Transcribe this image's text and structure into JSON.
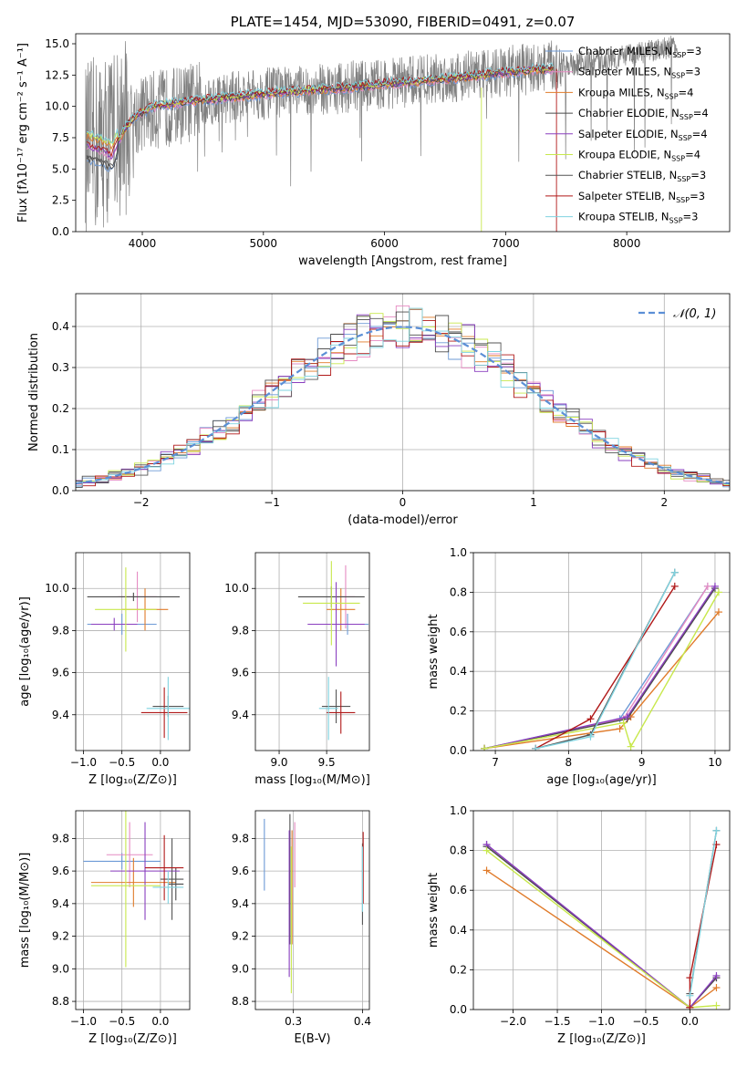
{
  "colors": {
    "Chabrier MILES": "#6d9ad6",
    "Salpeter MILES": "#e68ac2",
    "Kroupa MILES": "#e07b2a",
    "Chabrier ELODIE": "#4a4a4a",
    "Salpeter ELODIE": "#8a3fbf",
    "Kroupa ELODIE": "#c8e84c",
    "Chabrier STELIB": "#555555",
    "Salpeter STELIB": "#b01818",
    "Kroupa STELIB": "#7fd3e0",
    "data": "#808080",
    "gauss": "#5b8fd6"
  },
  "chart_data": [
    {
      "id": "spectrum",
      "type": "line",
      "title": "PLATE=1454, MJD=53090, FIBERID=0491, z=0.07",
      "xlabel": "wavelength [Angstrom, rest frame]",
      "ylabel": "Flux [fλ10⁻¹⁷ erg cm⁻² s⁻¹ A⁻¹]",
      "xlim": [
        3450,
        8850
      ],
      "ylim": [
        0,
        15.8
      ],
      "xticks": [
        4000,
        5000,
        6000,
        7000,
        8000
      ],
      "yticks": [
        0.0,
        2.5,
        5.0,
        7.5,
        10.0,
        12.5,
        15.0
      ],
      "legend_position": "upper-right",
      "legend": [
        "Chabrier MILES, N_SSP=3",
        "Salpeter MILES, N_SSP=3",
        "Kroupa MILES, N_SSP=4",
        "Chabrier ELODIE, N_SSP=4",
        "Salpeter ELODIE, N_SSP=4",
        "Kroupa ELODIE, N_SSP=4",
        "Chabrier STELIB, N_SSP=3",
        "Salpeter STELIB, N_SSP=3",
        "Kroupa STELIB, N_SSP=3"
      ],
      "legend_names": [
        "Chabrier MILES",
        "Salpeter MILES",
        "Kroupa MILES",
        "Chabrier ELODIE",
        "Salpeter ELODIE",
        "Kroupa ELODIE",
        "Chabrier STELIB",
        "Salpeter STELIB",
        "Kroupa STELIB"
      ],
      "legend_prefix": [
        "Chabrier MILES, N",
        "Salpeter MILES, N",
        "Kroupa MILES, N",
        "Chabrier ELODIE, N",
        "Salpeter ELODIE, N",
        "Kroupa ELODIE, N",
        "Chabrier STELIB, N",
        "Salpeter STELIB, N",
        "Kroupa STELIB, N"
      ],
      "legend_sub": "SSP",
      "legend_n": [
        "3",
        "3",
        "4",
        "4",
        "4",
        "4",
        "3",
        "3",
        "3"
      ],
      "model_continuum": {
        "x": [
          3550,
          3650,
          3750,
          3850,
          3950,
          4100,
          4300,
          4500,
          4800,
          5100,
          5400,
          5700,
          6000,
          6300,
          6600,
          6900,
          7200,
          7400
        ],
        "y": [
          6.8,
          6.5,
          6.0,
          8.2,
          9.3,
          10.0,
          10.3,
          10.5,
          10.8,
          11.1,
          11.3,
          11.5,
          11.8,
          12.0,
          12.3,
          12.6,
          12.9,
          13.0
        ]
      },
      "data_continuum": {
        "x": [
          3550,
          3800,
          4000,
          4500,
          5000,
          5500,
          6000,
          6500,
          7000,
          7500,
          8000,
          8400
        ],
        "y": [
          6.5,
          8.0,
          9.5,
          10.5,
          11.0,
          11.4,
          11.8,
          12.3,
          12.8,
          13.3,
          14.0,
          14.8
        ]
      }
    },
    {
      "id": "residuals",
      "type": "line",
      "xlabel": "(data-model)/error",
      "ylabel": "Normed distribution",
      "xlim": [
        -2.5,
        2.5
      ],
      "ylim": [
        0,
        0.48
      ],
      "xticks": [
        -2,
        -1,
        0,
        1,
        2
      ],
      "yticks": [
        0.0,
        0.1,
        0.2,
        0.3,
        0.4
      ],
      "legend_position": "upper-right",
      "legend": [
        "𝒩(0, 1)"
      ],
      "bin_width": 0.1
    },
    {
      "id": "age_vs_Z",
      "type": "scatter",
      "xlabel": "Z [log₁₀(Z/Z⊙)]",
      "ylabel": "age  [log₁₀(age/yr)]",
      "xlim": [
        -1.1,
        0.38
      ],
      "ylim": [
        9.23,
        10.17
      ],
      "xticks": [
        -1.0,
        -0.5,
        0.0
      ],
      "yticks": [
        9.4,
        9.6,
        9.8,
        10.0
      ],
      "errorbars": [
        {
          "model": "Chabrier MILES",
          "x": -0.5,
          "y": 9.83,
          "xerr": 0.45,
          "yerr": 0.05
        },
        {
          "model": "Salpeter MILES",
          "x": -0.3,
          "y": 9.96,
          "xerr": 0.25,
          "yerr": 0.12
        },
        {
          "model": "Kroupa MILES",
          "x": -0.2,
          "y": 9.9,
          "xerr": 0.3,
          "yerr": 0.1
        },
        {
          "model": "Chabrier ELODIE",
          "x": -0.35,
          "y": 9.96,
          "xerr": 0.6,
          "yerr": 0.02
        },
        {
          "model": "Salpeter ELODIE",
          "x": -0.6,
          "y": 9.83,
          "xerr": 0.3,
          "yerr": 0.03
        },
        {
          "model": "Kroupa ELODIE",
          "x": -0.45,
          "y": 9.9,
          "xerr": 0.4,
          "yerr": 0.2
        },
        {
          "model": "Chabrier STELIB",
          "x": 0.1,
          "y": 9.44,
          "xerr": 0.2,
          "yerr": 0.05
        },
        {
          "model": "Salpeter STELIB",
          "x": 0.05,
          "y": 9.41,
          "xerr": 0.3,
          "yerr": 0.12
        },
        {
          "model": "Kroupa STELIB",
          "x": 0.1,
          "y": 9.43,
          "xerr": 0.28,
          "yerr": 0.15
        }
      ]
    },
    {
      "id": "age_vs_mass",
      "type": "scatter",
      "xlabel": "mass [log₁₀(M/M⊙)]",
      "ylabel": "",
      "xlim": [
        8.75,
        9.95
      ],
      "ylim": [
        9.23,
        10.17
      ],
      "xticks": [
        9.0,
        9.5
      ],
      "yticks": [
        9.4,
        9.6,
        9.8,
        10.0
      ],
      "errorbars": [
        {
          "model": "Chabrier MILES",
          "x": 9.72,
          "y": 9.83,
          "xerr": 0.22,
          "yerr": 0.05
        },
        {
          "model": "Salpeter MILES",
          "x": 9.7,
          "y": 9.96,
          "xerr": 0.1,
          "yerr": 0.15
        },
        {
          "model": "Kroupa MILES",
          "x": 9.65,
          "y": 9.9,
          "xerr": 0.15,
          "yerr": 0.1
        },
        {
          "model": "Chabrier ELODIE",
          "x": 9.55,
          "y": 9.96,
          "xerr": 0.35,
          "yerr": 0.05
        },
        {
          "model": "Salpeter ELODIE",
          "x": 9.6,
          "y": 9.83,
          "xerr": 0.3,
          "yerr": 0.2
        },
        {
          "model": "Kroupa ELODIE",
          "x": 9.55,
          "y": 9.93,
          "xerr": 0.3,
          "yerr": 0.2
        },
        {
          "model": "Chabrier STELIB",
          "x": 9.6,
          "y": 9.44,
          "xerr": 0.15,
          "yerr": 0.08
        },
        {
          "model": "Salpeter STELIB",
          "x": 9.65,
          "y": 9.41,
          "xerr": 0.15,
          "yerr": 0.1
        },
        {
          "model": "Kroupa STELIB",
          "x": 9.52,
          "y": 9.43,
          "xerr": 0.1,
          "yerr": 0.15
        }
      ]
    },
    {
      "id": "weight_vs_age",
      "type": "line",
      "xlabel": "age  [log₁₀(age/yr)]",
      "ylabel": "mass weight",
      "xlim": [
        6.7,
        10.2
      ],
      "ylim": [
        0,
        1.0
      ],
      "xticks": [
        7,
        8,
        9,
        10
      ],
      "yticks": [
        0.0,
        0.2,
        0.4,
        0.6,
        0.8,
        1.0
      ],
      "series": [
        {
          "model": "Chabrier MILES",
          "x": [
            6.85,
            8.7,
            9.9
          ],
          "y": [
            0.01,
            0.16,
            0.83
          ]
        },
        {
          "model": "Salpeter MILES",
          "x": [
            6.85,
            8.75,
            9.9
          ],
          "y": [
            0.01,
            0.16,
            0.83
          ]
        },
        {
          "model": "Kroupa MILES",
          "x": [
            6.85,
            8.7,
            8.85,
            10.05
          ],
          "y": [
            0.01,
            0.11,
            0.17,
            0.7
          ]
        },
        {
          "model": "Chabrier ELODIE",
          "x": [
            6.85,
            8.8,
            10.0
          ],
          "y": [
            0.01,
            0.16,
            0.82
          ]
        },
        {
          "model": "Salpeter ELODIE",
          "x": [
            6.85,
            8.8,
            10.0
          ],
          "y": [
            0.01,
            0.17,
            0.83
          ]
        },
        {
          "model": "Kroupa ELODIE",
          "x": [
            6.85,
            8.75,
            8.85,
            10.05
          ],
          "y": [
            0.01,
            0.14,
            0.02,
            0.8
          ]
        },
        {
          "model": "Chabrier STELIB",
          "x": [
            7.55,
            8.3,
            9.45
          ],
          "y": [
            0.01,
            0.08,
            0.9
          ]
        },
        {
          "model": "Salpeter STELIB",
          "x": [
            7.55,
            8.3,
            9.45
          ],
          "y": [
            0.01,
            0.16,
            0.83
          ]
        },
        {
          "model": "Kroupa STELIB",
          "x": [
            7.55,
            8.3,
            9.45
          ],
          "y": [
            0.01,
            0.07,
            0.9
          ]
        }
      ]
    },
    {
      "id": "mass_vs_Z",
      "type": "scatter",
      "xlabel": "Z [log₁₀(Z/Z⊙)]",
      "ylabel": "mass [log₁₀(M/M⊙)]",
      "xlim": [
        -1.1,
        0.38
      ],
      "ylim": [
        8.75,
        9.97
      ],
      "xticks": [
        -1.0,
        -0.5,
        0.0
      ],
      "yticks": [
        8.8,
        9.0,
        9.2,
        9.4,
        9.6,
        9.8
      ],
      "errorbars": [
        {
          "model": "Chabrier MILES",
          "x": -0.5,
          "y": 9.66,
          "xerr": 0.5,
          "yerr": 0.05
        },
        {
          "model": "Salpeter MILES",
          "x": -0.4,
          "y": 9.7,
          "xerr": 0.3,
          "yerr": 0.2
        },
        {
          "model": "Kroupa MILES",
          "x": -0.35,
          "y": 9.53,
          "xerr": 0.55,
          "yerr": 0.15
        },
        {
          "model": "Chabrier ELODIE",
          "x": 0.2,
          "y": 9.52,
          "xerr": 0.1,
          "yerr": 0.1
        },
        {
          "model": "Salpeter ELODIE",
          "x": -0.2,
          "y": 9.6,
          "xerr": 0.45,
          "yerr": 0.3
        },
        {
          "model": "Kroupa ELODIE",
          "x": -0.45,
          "y": 9.51,
          "xerr": 0.45,
          "yerr": 0.5
        },
        {
          "model": "Chabrier STELIB",
          "x": 0.15,
          "y": 9.55,
          "xerr": 0.15,
          "yerr": 0.25
        },
        {
          "model": "Salpeter STELIB",
          "x": 0.05,
          "y": 9.62,
          "xerr": 0.25,
          "yerr": 0.2
        },
        {
          "model": "Kroupa STELIB",
          "x": 0.1,
          "y": 9.5,
          "xerr": 0.2,
          "yerr": 0.1
        }
      ]
    },
    {
      "id": "mass_vs_ebv",
      "type": "scatter",
      "xlabel": "E(B-V)",
      "ylabel": "",
      "xlim": [
        0.245,
        0.41
      ],
      "ylim": [
        8.75,
        9.97
      ],
      "xticks": [
        0.3,
        0.4
      ],
      "yticks": [
        8.8,
        9.0,
        9.2,
        9.4,
        9.6,
        9.8
      ],
      "errorbars": [
        {
          "model": "Chabrier MILES",
          "x": 0.258,
          "y": 9.7,
          "xerr": 0,
          "yerr": 0.22
        },
        {
          "model": "Salpeter MILES",
          "x": 0.302,
          "y": 9.7,
          "xerr": 0,
          "yerr": 0.2
        },
        {
          "model": "Kroupa MILES",
          "x": 0.298,
          "y": 9.5,
          "xerr": 0,
          "yerr": 0.35
        },
        {
          "model": "Chabrier ELODIE",
          "x": 0.295,
          "y": 9.55,
          "xerr": 0,
          "yerr": 0.4
        },
        {
          "model": "Salpeter ELODIE",
          "x": 0.294,
          "y": 9.4,
          "xerr": 0,
          "yerr": 0.45
        },
        {
          "model": "Kroupa ELODIE",
          "x": 0.297,
          "y": 9.3,
          "xerr": 0,
          "yerr": 0.45
        },
        {
          "model": "Chabrier STELIB",
          "x": 0.4,
          "y": 9.52,
          "xerr": 0,
          "yerr": 0.25
        },
        {
          "model": "Salpeter STELIB",
          "x": 0.401,
          "y": 9.62,
          "xerr": 0,
          "yerr": 0.22
        },
        {
          "model": "Kroupa STELIB",
          "x": 0.4,
          "y": 9.55,
          "xerr": 0,
          "yerr": 0.2
        }
      ]
    },
    {
      "id": "weight_vs_Z",
      "type": "line",
      "xlabel": "Z [log₁₀(Z/Z⊙)]",
      "ylabel": "mass weight",
      "xlim": [
        -2.45,
        0.45
      ],
      "ylim": [
        0,
        1.0
      ],
      "xticks": [
        -2.0,
        -1.5,
        -1.0,
        -0.5,
        0.0
      ],
      "yticks": [
        0.0,
        0.2,
        0.4,
        0.6,
        0.8,
        1.0
      ],
      "series": [
        {
          "model": "Chabrier MILES",
          "x": [
            -2.3,
            0.0,
            0.3
          ],
          "y": [
            0.83,
            0.01,
            0.16
          ]
        },
        {
          "model": "Salpeter MILES",
          "x": [
            -2.3,
            0.0,
            0.3
          ],
          "y": [
            0.83,
            0.01,
            0.16
          ]
        },
        {
          "model": "Kroupa MILES",
          "x": [
            -2.3,
            0.0,
            0.3
          ],
          "y": [
            0.7,
            0.01,
            0.11
          ]
        },
        {
          "model": "Chabrier ELODIE",
          "x": [
            -2.3,
            0.0,
            0.3
          ],
          "y": [
            0.82,
            0.01,
            0.16
          ]
        },
        {
          "model": "Salpeter ELODIE",
          "x": [
            -2.3,
            0.0,
            0.3
          ],
          "y": [
            0.83,
            0.01,
            0.17
          ]
        },
        {
          "model": "Kroupa ELODIE",
          "x": [
            -2.3,
            0.0,
            0.3
          ],
          "y": [
            0.8,
            0.01,
            0.02
          ]
        },
        {
          "model": "Chabrier STELIB",
          "x": [
            0.0,
            0.3
          ],
          "y": [
            0.08,
            0.9
          ]
        },
        {
          "model": "Salpeter STELIB",
          "x": [
            0.0,
            0.0,
            0.3
          ],
          "y": [
            0.01,
            0.16,
            0.83
          ]
        },
        {
          "model": "Kroupa STELIB",
          "x": [
            0.0,
            0.3
          ],
          "y": [
            0.07,
            0.9
          ]
        }
      ]
    }
  ]
}
